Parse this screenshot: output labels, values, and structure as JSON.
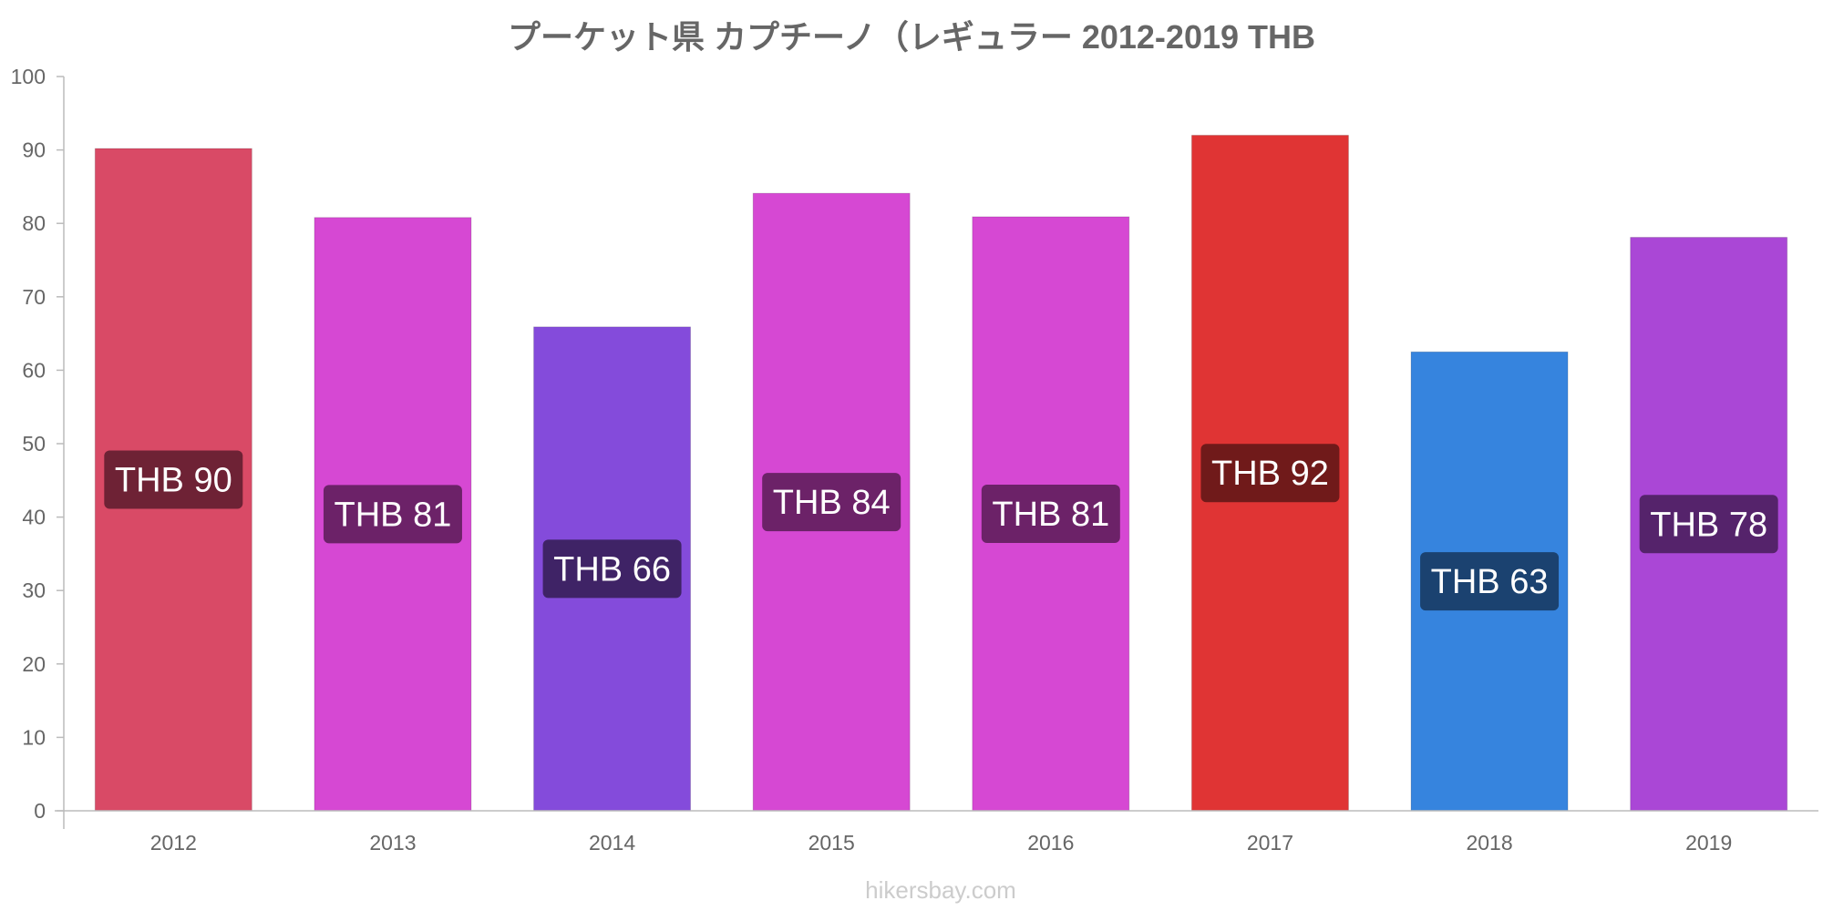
{
  "chart_data": {
    "type": "bar",
    "title": "プーケット県 カプチーノ（レギュラー 2012-2019 THB",
    "categories": [
      "2012",
      "2013",
      "2014",
      "2015",
      "2016",
      "2017",
      "2018",
      "2019"
    ],
    "values": [
      90.2,
      80.8,
      65.9,
      84.1,
      80.9,
      92.0,
      62.5,
      78.1
    ],
    "data_labels": [
      "THB 90",
      "THB 81",
      "THB 66",
      "THB 84",
      "THB 81",
      "THB 92",
      "THB 63",
      "THB 78"
    ],
    "colors": [
      "#d94a66",
      "#d648d3",
      "#844bdb",
      "#d648d3",
      "#d648d3",
      "#e03434",
      "#3684de",
      "#aa47d6"
    ],
    "label_box_colors": [
      "#6e2235",
      "#6c2268",
      "#3f2366",
      "#6c2268",
      "#6c2268",
      "#701a1a",
      "#1b4270",
      "#55236b"
    ],
    "ylim": [
      0,
      100
    ],
    "yticks": [
      0,
      10,
      20,
      30,
      40,
      50,
      60,
      70,
      80,
      90,
      100
    ],
    "grid": false,
    "xlabel": "",
    "ylabel": ""
  },
  "footer": "hikersbay.com"
}
